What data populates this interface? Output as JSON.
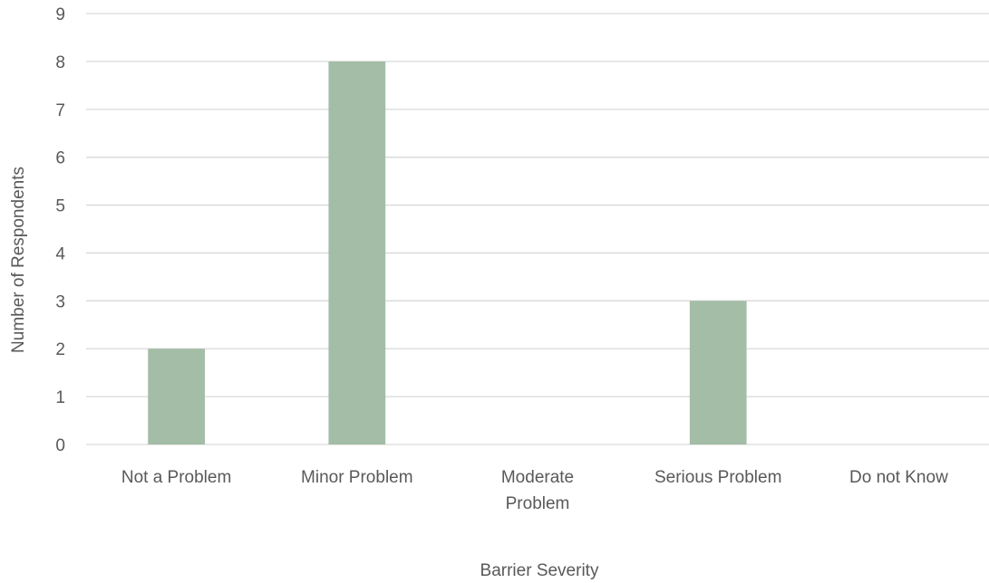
{
  "chart_data": {
    "type": "bar",
    "categories": [
      "Not a Problem",
      "Minor Problem",
      "Moderate Problem",
      "Serious Problem",
      "Do not Know"
    ],
    "category_lines": [
      [
        "Not a Problem"
      ],
      [
        "Minor Problem"
      ],
      [
        "Moderate",
        "Problem"
      ],
      [
        "Serious Problem"
      ],
      [
        "Do not Know"
      ]
    ],
    "values": [
      2,
      8,
      0,
      3,
      0
    ],
    "xlabel": "Barrier Severity",
    "ylabel": "Number of Respondents",
    "ylim": [
      0,
      9
    ],
    "yticks": [
      "0",
      "1",
      "2",
      "3",
      "4",
      "5",
      "6",
      "7",
      "8",
      "9"
    ],
    "grid": true,
    "bar_color": "#a4bda6",
    "grid_color": "#d9d9d9"
  }
}
